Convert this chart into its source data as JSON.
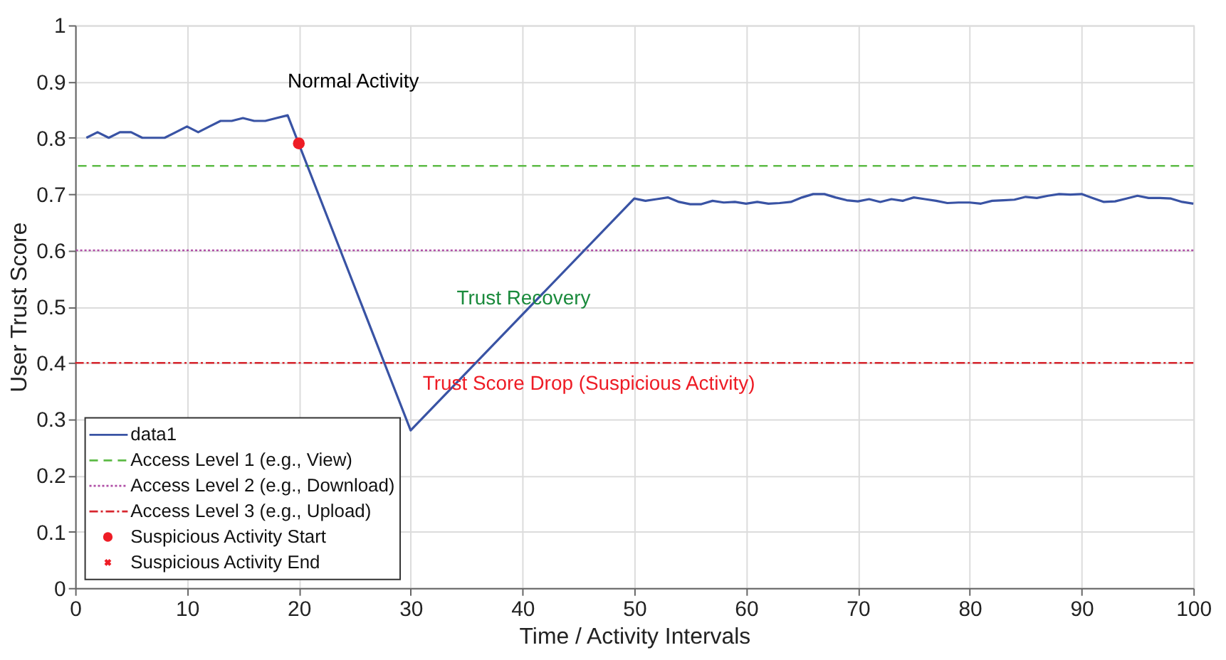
{
  "chart_data": {
    "type": "line",
    "xlabel": "Time / Activity Intervals",
    "ylabel": "User Trust Score",
    "xlim": [
      0,
      100
    ],
    "xticks": [
      0,
      10,
      20,
      30,
      40,
      50,
      60,
      70,
      80,
      90,
      100
    ],
    "ylim": [
      0,
      1
    ],
    "yticks": [
      0,
      0.1,
      0.2,
      0.3,
      0.4,
      0.5,
      0.6,
      0.7,
      0.8,
      0.9,
      1
    ],
    "grid": true,
    "legend": "bottom left",
    "series": [
      {
        "name": "data1",
        "color": "#3953a4",
        "line_style": "solid",
        "marker": "none",
        "x": [
          1,
          2,
          3,
          4,
          5,
          6,
          7,
          8,
          9,
          10,
          11,
          12,
          13,
          14,
          15,
          16,
          17,
          18,
          19,
          30,
          50,
          51,
          52,
          53,
          54,
          55,
          56,
          57,
          58,
          59,
          60,
          61,
          62,
          63,
          64,
          65,
          66,
          67,
          68,
          69,
          70,
          71,
          72,
          73,
          74,
          75,
          76,
          77,
          78,
          79,
          80,
          81,
          82,
          83,
          84,
          85,
          86,
          87,
          88,
          89,
          90,
          91,
          92,
          93,
          94,
          95,
          96,
          97,
          98,
          99,
          100
        ],
        "values": [
          0.8,
          0.81,
          0.8,
          0.81,
          0.81,
          0.8,
          0.8,
          0.8,
          0.81,
          0.82,
          0.81,
          0.82,
          0.83,
          0.83,
          0.835,
          0.83,
          0.83,
          0.835,
          0.84,
          0.28,
          0.692,
          0.688,
          0.691,
          0.694,
          0.686,
          0.682,
          0.682,
          0.688,
          0.685,
          0.686,
          0.683,
          0.686,
          0.683,
          0.684,
          0.686,
          0.694,
          0.7,
          0.7,
          0.694,
          0.689,
          0.687,
          0.691,
          0.686,
          0.691,
          0.688,
          0.694,
          0.691,
          0.688,
          0.684,
          0.685,
          0.685,
          0.683,
          0.688,
          0.689,
          0.69,
          0.695,
          0.693,
          0.697,
          0.7,
          0.699,
          0.7,
          0.693,
          0.686,
          0.687,
          0.692,
          0.697,
          0.693,
          0.693,
          0.692,
          0.686,
          0.683
        ]
      },
      {
        "name": "Suspicious Activity Start",
        "type": "scatter",
        "color": "#ee1c25",
        "marker": "circle",
        "x": [
          20
        ],
        "values": [
          0.79
        ]
      },
      {
        "name": "Suspicious Activity End",
        "type": "scatter",
        "color": "#ee1c25",
        "marker": "cross",
        "values": [
          null
        ]
      }
    ],
    "ref_lines": [
      {
        "axis": "y",
        "value": 0.75,
        "label": "Access Level 1 (e.g., View)",
        "color": "#5dbb46",
        "line_style": "dashed"
      },
      {
        "axis": "y",
        "value": 0.6,
        "label": "Access Level 2 (e.g., Download)",
        "color": "#b04fa6",
        "line_style": "dotted"
      },
      {
        "axis": "y",
        "value": 0.4,
        "label": "Access Level 3 (e.g., Upload)",
        "color": "#d7262e",
        "line_style": "dashdot"
      }
    ],
    "annotations": [
      "Normal Activity",
      "Trust Recovery",
      "Trust Score Drop (Suspicious Activity)"
    ]
  }
}
